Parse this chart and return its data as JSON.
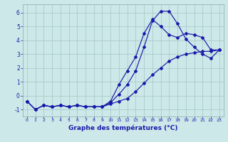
{
  "xlabel": "Graphe des températures (°C)",
  "background_color": "#cce8e8",
  "grid_color": "#b0d0d0",
  "line_color": "#1a1aaa",
  "xlim": [
    -0.5,
    23.5
  ],
  "ylim": [
    -1.5,
    6.6
  ],
  "yticks": [
    -1,
    0,
    1,
    2,
    3,
    4,
    5,
    6
  ],
  "xticks": [
    0,
    1,
    2,
    3,
    4,
    5,
    6,
    7,
    8,
    9,
    10,
    11,
    12,
    13,
    14,
    15,
    16,
    17,
    18,
    19,
    20,
    21,
    22,
    23
  ],
  "line1_x": [
    0,
    1,
    2,
    3,
    4,
    5,
    6,
    7,
    8,
    9,
    10,
    11,
    12,
    13,
    14,
    15,
    16,
    17,
    18,
    19,
    20,
    21,
    22,
    23
  ],
  "line1_y": [
    -0.4,
    -1.0,
    -0.7,
    -0.8,
    -0.7,
    -0.8,
    -0.7,
    -0.8,
    -0.8,
    -0.8,
    -0.5,
    0.1,
    0.8,
    1.8,
    3.5,
    5.4,
    6.1,
    6.1,
    5.2,
    4.1,
    3.5,
    3.0,
    2.7,
    3.3
  ],
  "line2_x": [
    0,
    1,
    2,
    3,
    4,
    5,
    6,
    7,
    8,
    9,
    10,
    11,
    12,
    13,
    14,
    15,
    16,
    17,
    18,
    19,
    20,
    21,
    22,
    23
  ],
  "line2_y": [
    -0.4,
    -1.0,
    -0.7,
    -0.8,
    -0.7,
    -0.8,
    -0.7,
    -0.8,
    -0.8,
    -0.8,
    -0.4,
    0.8,
    1.8,
    2.8,
    4.5,
    5.5,
    5.0,
    4.4,
    4.2,
    4.5,
    4.4,
    4.2,
    3.3,
    3.3
  ],
  "line3_x": [
    0,
    1,
    2,
    3,
    4,
    5,
    6,
    7,
    8,
    9,
    10,
    11,
    12,
    13,
    14,
    15,
    16,
    17,
    18,
    19,
    20,
    21,
    22,
    23
  ],
  "line3_y": [
    -0.4,
    -1.0,
    -0.7,
    -0.8,
    -0.7,
    -0.8,
    -0.7,
    -0.8,
    -0.8,
    -0.8,
    -0.6,
    -0.4,
    -0.2,
    0.3,
    0.9,
    1.5,
    2.0,
    2.5,
    2.8,
    3.0,
    3.1,
    3.2,
    3.2,
    3.3
  ]
}
